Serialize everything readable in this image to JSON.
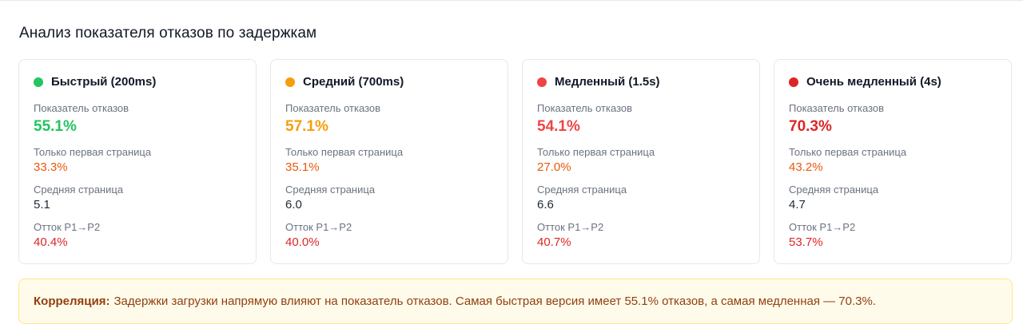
{
  "page": {
    "title": "Анализ показателя отказов по задержкам"
  },
  "labels": {
    "bounce_rate": "Показатель отказов",
    "first_page_only": "Только первая страница",
    "avg_page": "Средняя страница",
    "churn": "Отток P1→P2"
  },
  "cards": [
    {
      "name": "Быстрый (200ms)",
      "dot_color": "#22c55e",
      "bounce": "55.1%",
      "bounce_color": "#22c55e",
      "first_page_only": "33.3%",
      "avg_page": "5.1",
      "churn": "40.4%"
    },
    {
      "name": "Средний (700ms)",
      "dot_color": "#f59e0b",
      "bounce": "57.1%",
      "bounce_color": "#f59e0b",
      "first_page_only": "35.1%",
      "avg_page": "6.0",
      "churn": "40.0%"
    },
    {
      "name": "Медленный (1.5s)",
      "dot_color": "#ef4444",
      "bounce": "54.1%",
      "bounce_color": "#ef4444",
      "first_page_only": "27.0%",
      "avg_page": "6.6",
      "churn": "40.7%"
    },
    {
      "name": "Очень медленный (4s)",
      "dot_color": "#dc2626",
      "bounce": "70.3%",
      "bounce_color": "#dc2626",
      "first_page_only": "43.2%",
      "avg_page": "4.7",
      "churn": "53.7%"
    }
  ],
  "note": {
    "label": "Корреляция:",
    "text": "Задержки загрузки напрямую влияют на показатель отказов. Самая быстрая версия имеет 55.1% отказов, а самая медленная — 70.3%."
  }
}
